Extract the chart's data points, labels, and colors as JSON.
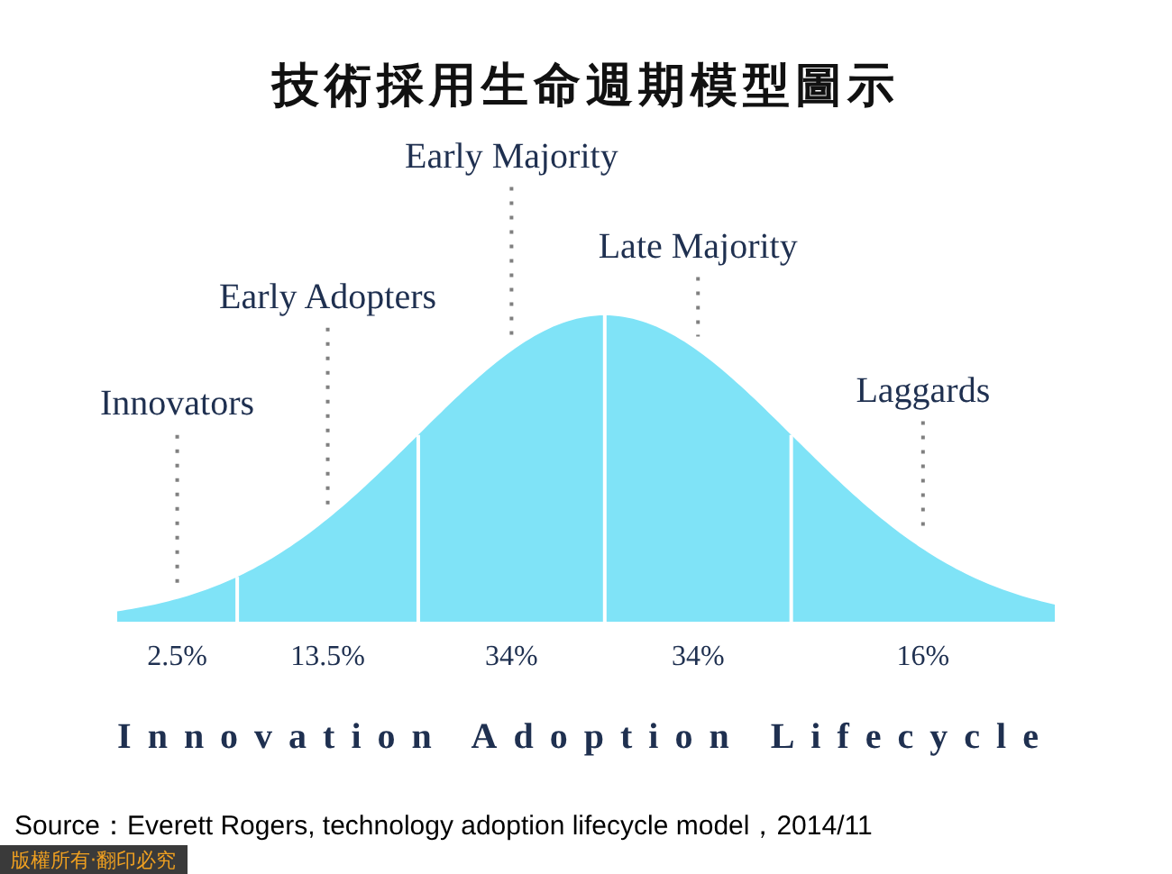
{
  "chart_data": {
    "type": "other",
    "title": "技術採用生命週期模型圖示",
    "xlabel": "Innovation Adoption Lifecycle",
    "categories": [
      "Innovators",
      "Early Adopters",
      "Early Majority",
      "Late Majority",
      "Laggards"
    ],
    "values": [
      2.5,
      13.5,
      34,
      34,
      16
    ],
    "value_labels": [
      "2.5%",
      "13.5%",
      "34%",
      "34%",
      "16%"
    ],
    "color": "#7fe3f7",
    "annotations": [
      "Source：Everett  Rogers, technology  adoption lifecycle model，2014/11",
      "版權所有‧翻印必究"
    ]
  }
}
